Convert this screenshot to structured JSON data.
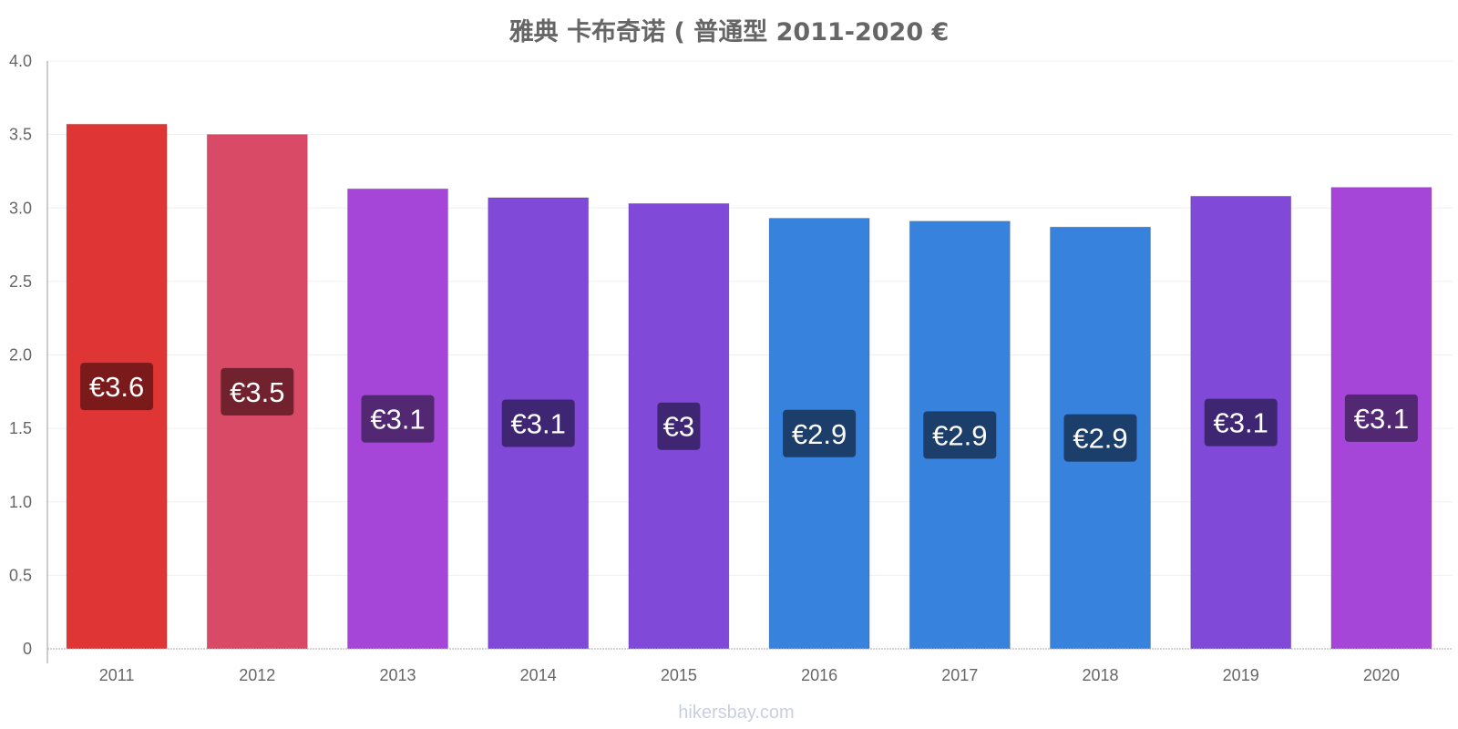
{
  "chart_data": {
    "type": "bar",
    "title": "雅典 卡布奇诺 ( 普通型 2011-2020 €",
    "xlabel": "",
    "ylabel": "",
    "categories": [
      "2011",
      "2012",
      "2013",
      "2014",
      "2015",
      "2016",
      "2017",
      "2018",
      "2019",
      "2020"
    ],
    "values": [
      3.57,
      3.5,
      3.13,
      3.07,
      3.03,
      2.93,
      2.91,
      2.87,
      3.08,
      3.14
    ],
    "data_labels": [
      "€3.6",
      "€3.5",
      "€3.1",
      "€3.1",
      "€3",
      "€2.9",
      "€2.9",
      "€2.9",
      "€3.1",
      "€3.1"
    ],
    "bar_colors": [
      "#e03535",
      "#d94a66",
      "#a646d8",
      "#8049d8",
      "#8049d8",
      "#3682dd",
      "#3682dd",
      "#3682dd",
      "#8049d8",
      "#a646d8"
    ],
    "label_colors": [
      "#7a1a1a",
      "#72222e",
      "#532873",
      "#3e2673",
      "#3e2673",
      "#1c3e6a",
      "#1c3e6a",
      "#1c3e6a",
      "#3e2673",
      "#532873"
    ],
    "ylim": [
      0,
      4.0
    ],
    "yticks": [
      "0",
      "0.5",
      "1.0",
      "1.5",
      "2.0",
      "2.5",
      "3.0",
      "3.5",
      "4.0"
    ],
    "grid": true,
    "legend": "none"
  },
  "watermark": "hikersbay.com"
}
